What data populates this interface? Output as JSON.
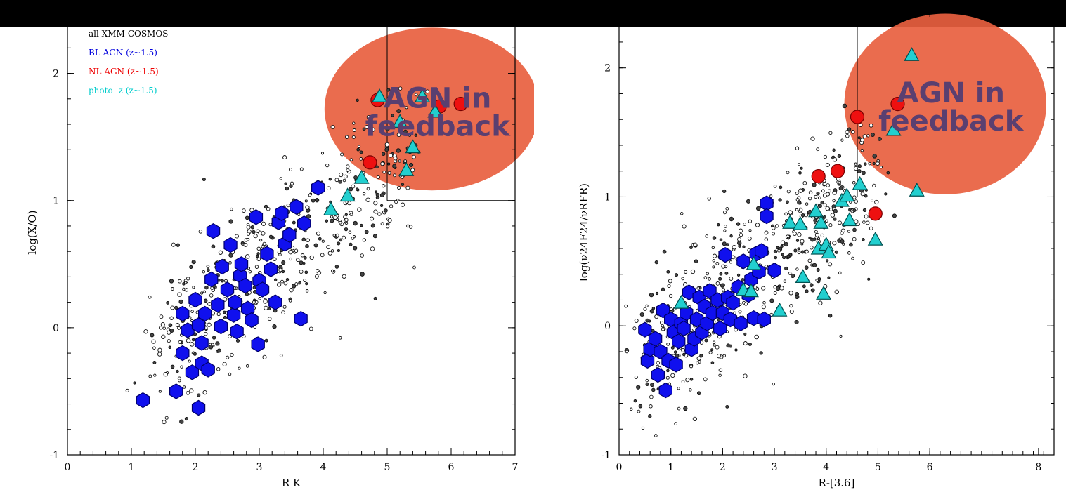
{
  "banner": {
    "visible_text": ""
  },
  "chart_data": [
    {
      "type": "scatter",
      "xlabel": "R  K",
      "ylabel": "log(X/O)",
      "xlim": [
        0,
        7
      ],
      "ylim": [
        -1,
        2.5
      ],
      "xticks": [
        "0",
        "1",
        "2",
        "3",
        "4",
        "5",
        "6",
        "7"
      ],
      "yticks": [
        "-1",
        "0",
        "1",
        "2"
      ],
      "legend": {
        "placement": "top-left",
        "entries": [
          {
            "label": "all XMM-COSMOS",
            "color": "#000000"
          },
          {
            "label": "BL AGN (z~1.5)",
            "color": "#0000dd"
          },
          {
            "label": "NL AGN (z~1.5)",
            "color": "#ee0000"
          },
          {
            "label": "photo -z (z~1.5)",
            "color": "#00cccc"
          }
        ]
      },
      "region_box": {
        "x_min": 5,
        "y_min": 1
      },
      "annotation": {
        "line1": "AGN in",
        "line2": "feedback",
        "center": [
          5.7,
          1.72
        ],
        "radii": [
          1.68,
          0.64
        ],
        "color": "#e8603f"
      },
      "series": [
        {
          "name": "BL AGN (z~1.5)",
          "marker": "hexagon",
          "color": "#1010ee",
          "points": [
            [
              1.18,
              -0.57
            ],
            [
              1.7,
              -0.5
            ],
            [
              2.05,
              -0.63
            ],
            [
              1.8,
              0.11
            ],
            [
              1.8,
              -0.2
            ],
            [
              1.95,
              -0.35
            ],
            [
              1.88,
              -0.02
            ],
            [
              2.0,
              0.22
            ],
            [
              2.05,
              0.02
            ],
            [
              2.1,
              -0.12
            ],
            [
              2.1,
              -0.28
            ],
            [
              2.2,
              -0.33
            ],
            [
              2.15,
              0.11
            ],
            [
              2.25,
              0.38
            ],
            [
              2.28,
              0.76
            ],
            [
              2.35,
              0.18
            ],
            [
              2.4,
              0.01
            ],
            [
              2.42,
              0.48
            ],
            [
              2.5,
              0.3
            ],
            [
              2.55,
              0.65
            ],
            [
              2.6,
              0.1
            ],
            [
              2.62,
              0.2
            ],
            [
              2.65,
              -0.03
            ],
            [
              2.7,
              0.41
            ],
            [
              2.72,
              0.5
            ],
            [
              2.78,
              0.33
            ],
            [
              2.82,
              0.15
            ],
            [
              2.88,
              0.06
            ],
            [
              2.95,
              0.87
            ],
            [
              2.98,
              -0.13
            ],
            [
              3.0,
              0.37
            ],
            [
              3.05,
              0.3
            ],
            [
              3.12,
              0.58
            ],
            [
              3.18,
              0.46
            ],
            [
              3.25,
              0.2
            ],
            [
              3.3,
              0.83
            ],
            [
              3.35,
              0.9
            ],
            [
              3.4,
              0.66
            ],
            [
              3.47,
              0.73
            ],
            [
              3.58,
              0.95
            ],
            [
              3.7,
              0.82
            ],
            [
              3.65,
              0.07
            ],
            [
              3.92,
              1.1
            ]
          ]
        },
        {
          "name": "NL AGN (z~1.5)",
          "marker": "circle",
          "color": "#ee1010",
          "points": [
            [
              4.73,
              1.3
            ],
            [
              5.82,
              1.74
            ],
            [
              6.15,
              1.76
            ],
            [
              4.85,
              1.79
            ]
          ]
        },
        {
          "name": "photo -z (z~1.5)",
          "marker": "triangle",
          "color": "#22cfcf",
          "points": [
            [
              4.12,
              0.93
            ],
            [
              4.38,
              1.04
            ],
            [
              4.6,
              1.18
            ],
            [
              4.88,
              1.82
            ],
            [
              5.55,
              1.82
            ],
            [
              5.3,
              1.24
            ],
            [
              5.4,
              1.42
            ],
            [
              5.2,
              1.62
            ],
            [
              5.75,
              1.7
            ]
          ]
        }
      ]
    },
    {
      "type": "scatter",
      "xlabel": "R-[3.6]",
      "ylabel": "log(ν24F24/νRFR)",
      "xlim": [
        0,
        8.4
      ],
      "ylim": [
        -1,
        2.45
      ],
      "xticks": [
        "0",
        "1",
        "2",
        "3",
        "4",
        "5",
        "6",
        "8"
      ],
      "yticks": [
        "-1",
        "0",
        "1",
        "2"
      ],
      "region_box": {
        "x_min": 4.6,
        "y_min": 1
      },
      "annotation": {
        "line1": "AGN in",
        "line2": "feedback",
        "center": [
          6.3,
          1.72
        ],
        "radii": [
          1.95,
          0.7
        ],
        "color": "#e8603f"
      },
      "series": [
        {
          "name": "BL AGN",
          "marker": "hexagon",
          "color": "#1010ee",
          "points": [
            [
              0.5,
              -0.03
            ],
            [
              0.55,
              -0.27
            ],
            [
              0.6,
              -0.18
            ],
            [
              0.7,
              -0.1
            ],
            [
              0.75,
              -0.38
            ],
            [
              0.8,
              -0.2
            ],
            [
              0.85,
              0.12
            ],
            [
              0.9,
              -0.5
            ],
            [
              0.95,
              -0.27
            ],
            [
              1.0,
              0.05
            ],
            [
              1.05,
              -0.05
            ],
            [
              1.1,
              -0.3
            ],
            [
              1.15,
              -0.12
            ],
            [
              1.2,
              0.02
            ],
            [
              1.25,
              -0.02
            ],
            [
              1.3,
              0.1
            ],
            [
              1.35,
              0.26
            ],
            [
              1.4,
              -0.18
            ],
            [
              1.45,
              -0.1
            ],
            [
              1.5,
              0.05
            ],
            [
              1.55,
              0.22
            ],
            [
              1.6,
              -0.05
            ],
            [
              1.65,
              0.15
            ],
            [
              1.7,
              0.02
            ],
            [
              1.75,
              0.27
            ],
            [
              1.8,
              0.1
            ],
            [
              1.9,
              0.2
            ],
            [
              1.95,
              -0.02
            ],
            [
              2.0,
              0.1
            ],
            [
              2.05,
              0.55
            ],
            [
              2.1,
              0.22
            ],
            [
              2.15,
              0.05
            ],
            [
              2.2,
              0.18
            ],
            [
              2.3,
              0.3
            ],
            [
              2.35,
              0.02
            ],
            [
              2.4,
              0.5
            ],
            [
              2.5,
              0.24
            ],
            [
              2.55,
              0.36
            ],
            [
              2.6,
              0.06
            ],
            [
              2.65,
              0.56
            ],
            [
              2.7,
              0.42
            ],
            [
              2.75,
              0.58
            ],
            [
              2.8,
              0.05
            ],
            [
              2.85,
              0.95
            ],
            [
              2.85,
              0.85
            ],
            [
              3.0,
              0.43
            ]
          ]
        },
        {
          "name": "NL AGN",
          "marker": "circle",
          "color": "#ee1010",
          "points": [
            [
              3.85,
              1.16
            ],
            [
              4.22,
              1.2
            ],
            [
              4.6,
              1.62
            ],
            [
              4.95,
              0.87
            ],
            [
              5.38,
              1.72
            ]
          ]
        },
        {
          "name": "photo-z",
          "marker": "triangle",
          "color": "#22cfcf",
          "points": [
            [
              1.2,
              0.18
            ],
            [
              2.4,
              0.28
            ],
            [
              2.55,
              0.27
            ],
            [
              2.6,
              0.48
            ],
            [
              3.1,
              0.12
            ],
            [
              3.3,
              0.8
            ],
            [
              3.5,
              0.79
            ],
            [
              3.55,
              0.38
            ],
            [
              3.8,
              0.89
            ],
            [
              3.85,
              0.6
            ],
            [
              3.9,
              0.8
            ],
            [
              3.95,
              0.25
            ],
            [
              4.0,
              0.63
            ],
            [
              4.05,
              0.57
            ],
            [
              4.3,
              0.97
            ],
            [
              4.4,
              1.01
            ],
            [
              4.45,
              0.82
            ],
            [
              4.65,
              1.1
            ],
            [
              4.95,
              0.67
            ],
            [
              5.3,
              1.52
            ],
            [
              5.65,
              2.1
            ],
            [
              5.75,
              1.05
            ]
          ]
        }
      ]
    }
  ]
}
